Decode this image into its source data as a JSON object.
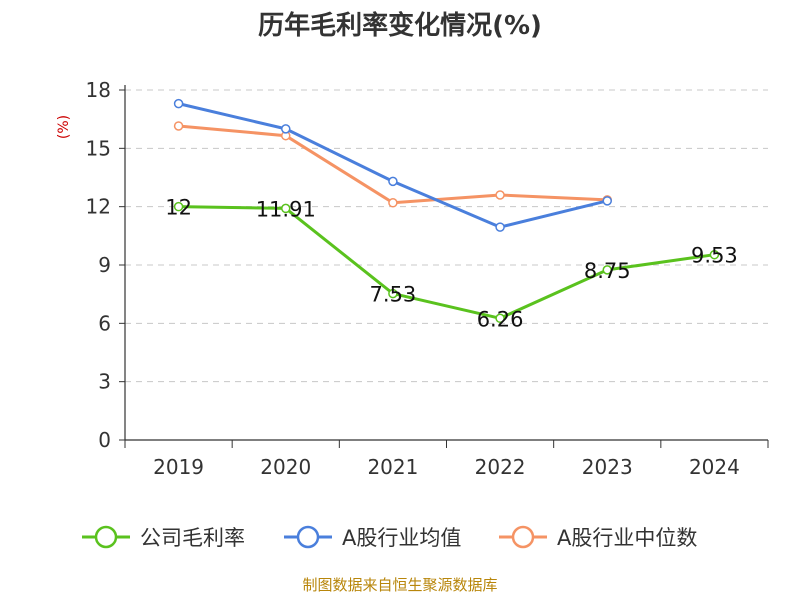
{
  "chart_data": {
    "type": "line",
    "title": "历年毛利率变化情况(%)",
    "ylabel": "(%)",
    "xlabel": "",
    "ylim": [
      0,
      18
    ],
    "yticks": [
      0,
      3,
      6,
      9,
      12,
      15,
      18
    ],
    "categories": [
      "2019",
      "2020",
      "2021",
      "2022",
      "2023",
      "2024"
    ],
    "grid": true,
    "legend_position": "bottom",
    "series": [
      {
        "name": "公司毛利率",
        "color": "#5ac21e",
        "values": [
          12,
          11.91,
          7.53,
          6.26,
          8.75,
          9.53
        ],
        "labels": [
          "12",
          "11.91",
          "7.53",
          "6.26",
          "8.75",
          "9.53"
        ]
      },
      {
        "name": "A股行业均值",
        "color": "#4a7fdc",
        "values": [
          17.3,
          16.0,
          13.3,
          10.95,
          12.3,
          null
        ]
      },
      {
        "name": "A股行业中位数",
        "color": "#f59364",
        "values": [
          16.15,
          15.65,
          12.2,
          12.6,
          12.35,
          null
        ]
      }
    ],
    "source": "制图数据来自恒生聚源数据库"
  }
}
